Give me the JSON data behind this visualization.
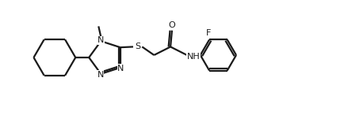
{
  "bg_color": "#ffffff",
  "line_color": "#1a1a1a",
  "line_width": 1.6,
  "font_size": 8.0,
  "fig_width": 4.34,
  "fig_height": 1.46,
  "dpi": 100,
  "xlim": [
    0,
    10.5
  ],
  "ylim": [
    0,
    3.8
  ]
}
